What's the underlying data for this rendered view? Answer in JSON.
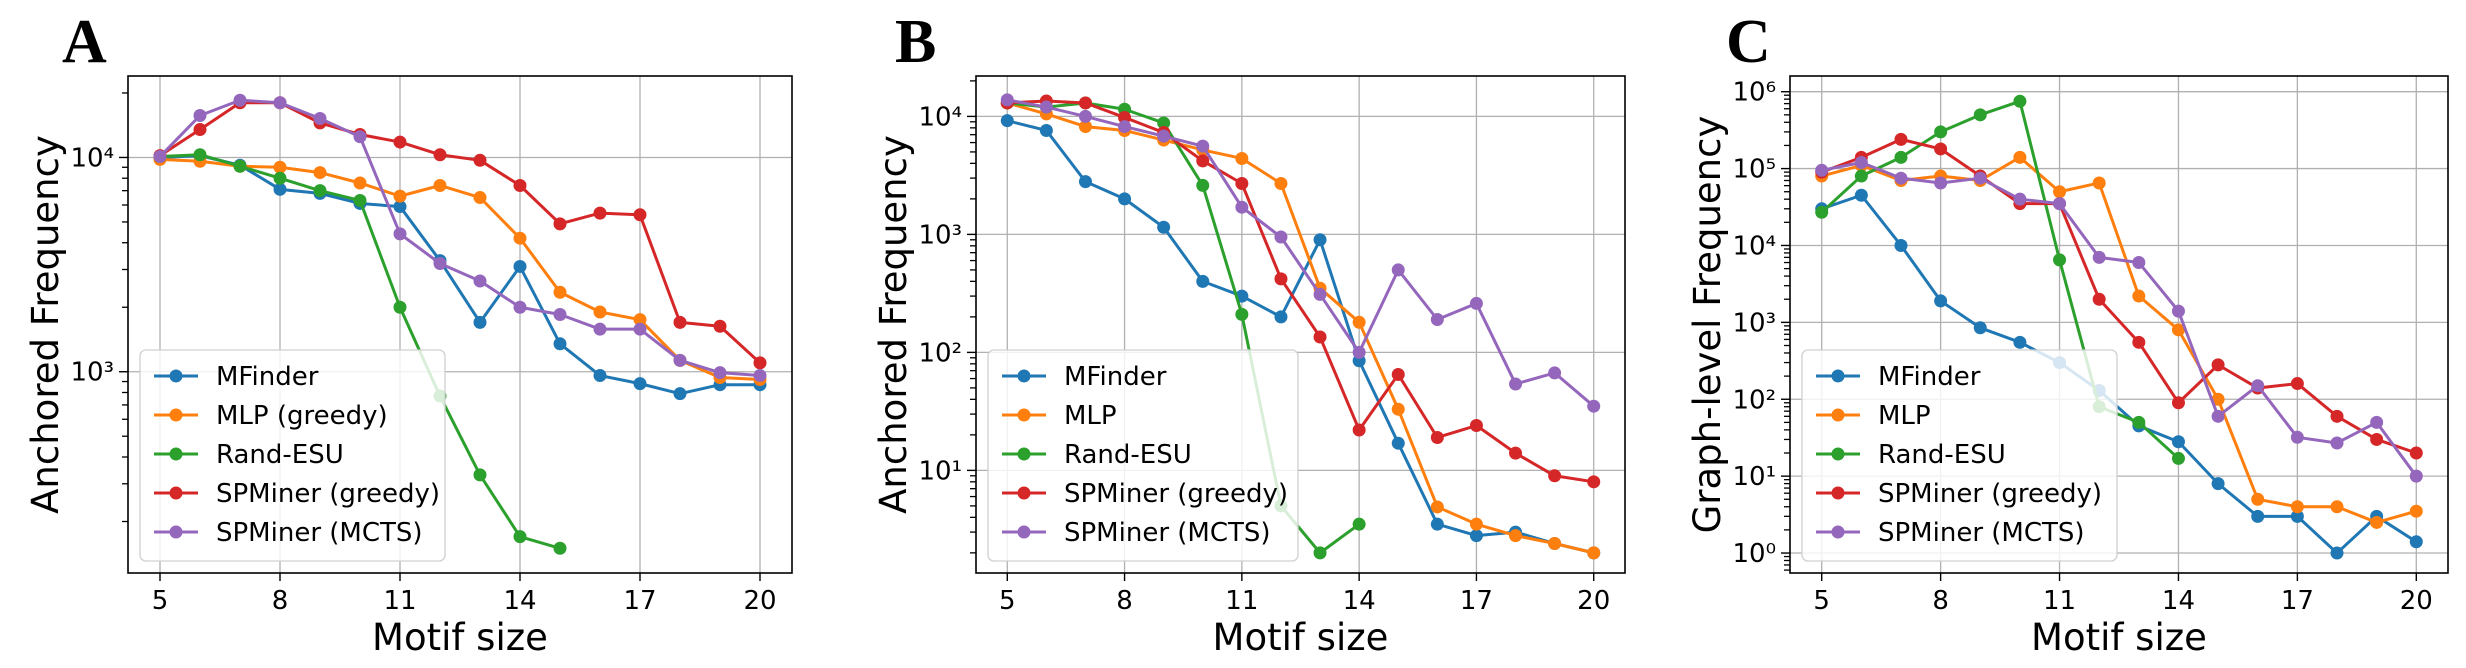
{
  "colors": {
    "blue": "#1f77b4",
    "orange": "#ff7f0e",
    "green": "#2ca02c",
    "red": "#d62728",
    "purple": "#9467bd",
    "grid": "#b0b0b0",
    "axis": "#000000"
  },
  "chart_data": [
    {
      "panel": "A",
      "type": "line",
      "yscale": "log",
      "xlabel": "Motif size",
      "ylabel": "Anchored Frequency",
      "xlim": [
        4.2,
        20.8
      ],
      "ylim": [
        115,
        24000
      ],
      "xticks": [
        5,
        8,
        11,
        14,
        17,
        20
      ],
      "xtick_labels": [
        "5",
        "8",
        "11",
        "14",
        "17",
        "20"
      ],
      "yticks": [
        1000,
        10000
      ],
      "ytick_labels": [
        "10³",
        "10⁴"
      ],
      "legend_position": "lower-left",
      "series": [
        {
          "name": "MFinder",
          "color": "#1f77b4",
          "x": [
            5,
            6,
            7,
            8,
            9,
            10,
            11,
            12,
            13,
            14,
            15,
            16,
            17,
            18,
            19,
            20
          ],
          "y": [
            10000,
            10200,
            9200,
            7100,
            6800,
            6100,
            5900,
            3300,
            1700,
            3100,
            1350,
            960,
            880,
            790,
            870,
            870
          ]
        },
        {
          "name": "MLP (greedy)",
          "color": "#ff7f0e",
          "x": [
            5,
            6,
            7,
            8,
            9,
            10,
            11,
            12,
            13,
            14,
            15,
            16,
            17,
            18,
            19,
            20
          ],
          "y": [
            9800,
            9600,
            9100,
            9000,
            8500,
            7600,
            6600,
            7400,
            6500,
            4200,
            2350,
            1900,
            1750,
            1130,
            940,
            920
          ]
        },
        {
          "name": "Rand-ESU",
          "color": "#2ca02c",
          "x": [
            5,
            6,
            7,
            8,
            9,
            10,
            11,
            12,
            13,
            14,
            15
          ],
          "y": [
            10100,
            10300,
            9100,
            8000,
            7000,
            6300,
            2000,
            770,
            330,
            170,
            150
          ]
        },
        {
          "name": "SPMiner (greedy)",
          "color": "#d62728",
          "x": [
            5,
            6,
            7,
            8,
            9,
            10,
            11,
            12,
            13,
            14,
            15,
            16,
            17,
            18,
            19,
            20
          ],
          "y": [
            10200,
            13500,
            18000,
            18000,
            14500,
            12800,
            11800,
            10300,
            9700,
            7400,
            4900,
            5500,
            5400,
            1700,
            1630,
            1100
          ]
        },
        {
          "name": "SPMiner (MCTS)",
          "color": "#9467bd",
          "x": [
            5,
            6,
            7,
            8,
            9,
            10,
            11,
            12,
            13,
            14,
            15,
            16,
            17,
            18,
            19,
            20
          ],
          "y": [
            10100,
            15700,
            18500,
            18000,
            15200,
            12500,
            4400,
            3200,
            2650,
            2000,
            1850,
            1580,
            1580,
            1130,
            990,
            960
          ]
        }
      ]
    },
    {
      "panel": "B",
      "type": "line",
      "yscale": "log",
      "xlabel": "Motif size",
      "ylabel": "Anchored Frequency",
      "xlim": [
        4.2,
        20.8
      ],
      "ylim": [
        1.35,
        22000
      ],
      "xticks": [
        5,
        8,
        11,
        14,
        17,
        20
      ],
      "xtick_labels": [
        "5",
        "8",
        "11",
        "14",
        "17",
        "20"
      ],
      "yticks": [
        10,
        100,
        1000,
        10000
      ],
      "ytick_labels": [
        "10¹",
        "10²",
        "10³",
        "10⁴"
      ],
      "legend_position": "lower-left",
      "series": [
        {
          "name": "MFinder",
          "color": "#1f77b4",
          "x": [
            5,
            6,
            7,
            8,
            9,
            10,
            11,
            12,
            13,
            14,
            15,
            16,
            17,
            18,
            19,
            20
          ],
          "y": [
            9200,
            7600,
            2800,
            2000,
            1150,
            400,
            300,
            200,
            900,
            85,
            17,
            3.5,
            2.8,
            3.0,
            2.4,
            2.0
          ]
        },
        {
          "name": "MLP",
          "color": "#ff7f0e",
          "x": [
            5,
            6,
            7,
            8,
            9,
            10,
            11,
            12,
            13,
            14,
            15,
            16,
            17,
            18,
            19,
            20
          ],
          "y": [
            13000,
            10500,
            8200,
            7600,
            6300,
            5200,
            4400,
            2700,
            350,
            180,
            33,
            4.9,
            3.5,
            2.8,
            2.4,
            2.0
          ]
        },
        {
          "name": "Rand-ESU",
          "color": "#2ca02c",
          "x": [
            5,
            6,
            7,
            8,
            9,
            10,
            11,
            12,
            13,
            14
          ],
          "y": [
            13000,
            12000,
            13000,
            11500,
            8800,
            2600,
            210,
            5.0,
            2.0,
            3.5
          ]
        },
        {
          "name": "SPMiner (greedy)",
          "color": "#d62728",
          "x": [
            5,
            6,
            7,
            8,
            9,
            10,
            11,
            12,
            13,
            14,
            15,
            16,
            17,
            18,
            19,
            20
          ],
          "y": [
            13000,
            13500,
            13000,
            9800,
            7300,
            4200,
            2700,
            420,
            135,
            22,
            65,
            19,
            24,
            14,
            9,
            8
          ]
        },
        {
          "name": "SPMiner (MCTS)",
          "color": "#9467bd",
          "x": [
            5,
            6,
            7,
            8,
            9,
            10,
            11,
            12,
            13,
            14,
            15,
            16,
            17,
            18,
            19,
            20
          ],
          "y": [
            13800,
            12000,
            10000,
            8200,
            6800,
            5600,
            1700,
            950,
            310,
            100,
            500,
            190,
            260,
            54,
            67,
            35
          ]
        }
      ]
    },
    {
      "panel": "C",
      "type": "line",
      "yscale": "log",
      "xlabel": "Motif size",
      "ylabel": "Graph-level Frequency",
      "xlim": [
        4.2,
        20.8
      ],
      "ylim": [
        0.55,
        1600000
      ],
      "xticks": [
        5,
        8,
        11,
        14,
        17,
        20
      ],
      "xtick_labels": [
        "5",
        "8",
        "11",
        "14",
        "17",
        "20"
      ],
      "yticks": [
        1,
        10,
        100,
        1000,
        10000,
        100000,
        1000000
      ],
      "ytick_labels": [
        "10⁰",
        "10¹",
        "10²",
        "10³",
        "10⁴",
        "10⁵",
        "10⁶"
      ],
      "legend_position": "lower-left",
      "series": [
        {
          "name": "MFinder",
          "color": "#1f77b4",
          "x": [
            5,
            6,
            7,
            8,
            9,
            10,
            11,
            12,
            13,
            14,
            15,
            16,
            17,
            18,
            19,
            20
          ],
          "y": [
            30000,
            45000,
            10000,
            1900,
            850,
            550,
            300,
            130,
            45,
            28,
            8,
            3,
            3,
            1,
            3,
            1.4
          ]
        },
        {
          "name": "MLP",
          "color": "#ff7f0e",
          "x": [
            5,
            6,
            7,
            8,
            9,
            10,
            11,
            12,
            13,
            14,
            15,
            16,
            17,
            18,
            19,
            20
          ],
          "y": [
            80000,
            110000,
            70000,
            80000,
            70000,
            140000,
            50000,
            65000,
            2200,
            800,
            100,
            5,
            4,
            4,
            2.5,
            3.5
          ]
        },
        {
          "name": "Rand-ESU",
          "color": "#2ca02c",
          "x": [
            5,
            6,
            7,
            8,
            9,
            10,
            11,
            12,
            13,
            14
          ],
          "y": [
            27000,
            80000,
            140000,
            300000,
            500000,
            750000,
            6500,
            80,
            50,
            17
          ]
        },
        {
          "name": "SPMiner (greedy)",
          "color": "#d62728",
          "x": [
            5,
            6,
            7,
            8,
            9,
            10,
            11,
            12,
            13,
            14,
            15,
            16,
            17,
            18,
            19,
            20
          ],
          "y": [
            90000,
            140000,
            240000,
            180000,
            80000,
            35000,
            35000,
            2000,
            550,
            90,
            280,
            140,
            160,
            60,
            30,
            20
          ]
        },
        {
          "name": "SPMiner (MCTS)",
          "color": "#9467bd",
          "x": [
            5,
            6,
            7,
            8,
            9,
            10,
            11,
            12,
            13,
            14,
            15,
            16,
            17,
            18,
            19,
            20
          ],
          "y": [
            95000,
            120000,
            75000,
            65000,
            75000,
            40000,
            35000,
            7000,
            6000,
            1400,
            60,
            150,
            32,
            27,
            50,
            10
          ]
        }
      ]
    }
  ]
}
